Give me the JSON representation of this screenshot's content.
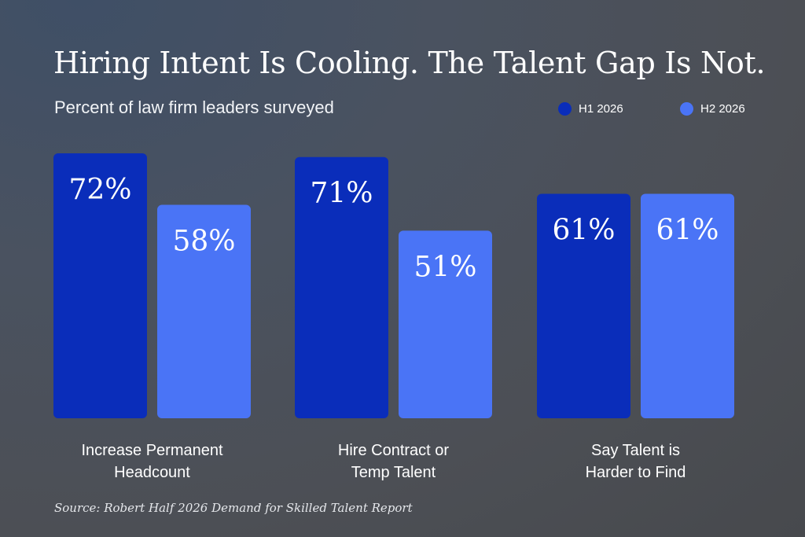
{
  "colors": {
    "h1": "#0a2dba",
    "h2": "#4a74f6"
  },
  "chart_data": {
    "type": "bar",
    "title": "Hiring Intent Is Cooling. The Talent Gap Is Not.",
    "subtitle": "Percent of law firm leaders surveyed",
    "categories": [
      "Increase Permanent Headcount",
      "Hire Contract or Temp Talent",
      "Say Talent is Harder to Find"
    ],
    "category_lines": [
      [
        "Increase Permanent",
        "Headcount"
      ],
      [
        "Hire Contract or",
        "Temp Talent"
      ],
      [
        "Say Talent is",
        "Harder to Find"
      ]
    ],
    "series": [
      {
        "name": "H1 2026",
        "values": [
          72,
          71,
          61
        ],
        "labels": [
          "72%",
          "71%",
          "61%"
        ]
      },
      {
        "name": "H2 2026",
        "values": [
          58,
          51,
          61
        ],
        "labels": [
          "58%",
          "51%",
          "61%"
        ]
      }
    ],
    "ylim": [
      0,
      100
    ],
    "unit": "%",
    "legend_position": "top-right",
    "grid": false,
    "source": "Source: Robert Half 2026 Demand for Skilled Talent Report"
  }
}
